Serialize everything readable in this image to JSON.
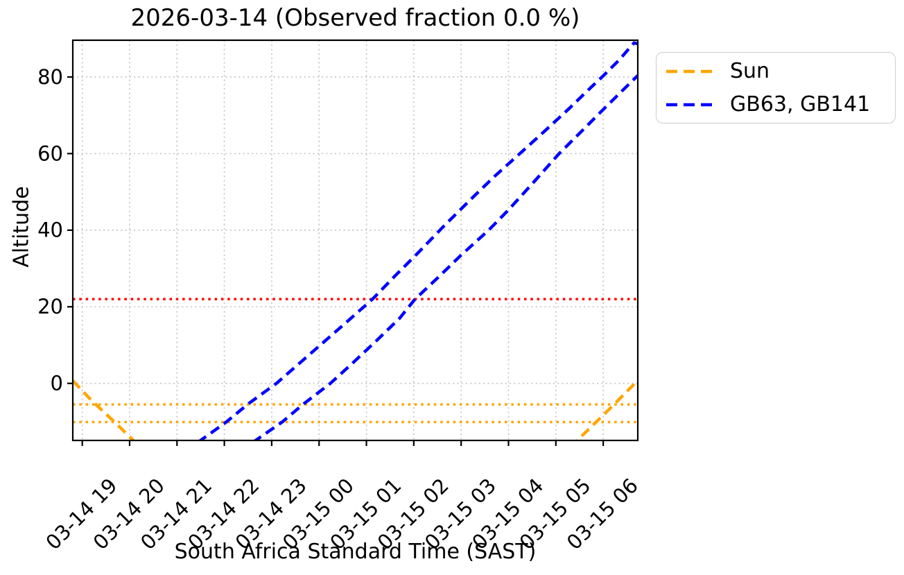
{
  "chart_data": {
    "type": "line",
    "title": "2026-03-14 (Observed fraction 0.0 %)",
    "xlabel": "South Africa Standard Time (SAST)",
    "ylabel": "Altitude",
    "x_axis": {
      "unit": "hours after 2026-03-14 19:00 SAST",
      "xlim": [
        -0.2,
        11.73
      ],
      "tick_positions": [
        0,
        1,
        2,
        3,
        4,
        5,
        6,
        7,
        8,
        9,
        10,
        11
      ],
      "tick_labels": [
        "03-14 19",
        "03-14 20",
        "03-14 21",
        "03-14 22",
        "03-14 23",
        "03-15 00",
        "03-15 01",
        "03-15 02",
        "03-15 03",
        "03-15 04",
        "03-15 05",
        "03-15 06"
      ],
      "tick_rotation_deg": 45
    },
    "y_axis": {
      "ylim": [
        -14.9,
        89.6
      ],
      "tick_positions": [
        0,
        20,
        40,
        60,
        80
      ],
      "tick_labels": [
        "0",
        "20",
        "40",
        "60",
        "80"
      ]
    },
    "grid": {
      "show": true,
      "color": "#c4c4c4",
      "line_style": "dotted"
    },
    "reference_lines": [
      {
        "label": "altitude-limit",
        "y": 22,
        "color": "#ff0000",
        "line_style": "dotted"
      },
      {
        "label": "sun-altitude-marker-upper",
        "y": -5.5,
        "color": "#ffa500",
        "line_style": "dotted"
      },
      {
        "label": "sun-altitude-marker-lower",
        "y": -10.1,
        "color": "#ffa500",
        "line_style": "dotted"
      }
    ],
    "series": [
      {
        "name": "Sun",
        "color": "#ffa500",
        "line_style": "dashed",
        "segments": [
          [
            [
              -0.2,
              0.7
            ],
            [
              0.2,
              -4.5
            ],
            [
              0.7,
              -10.3
            ],
            [
              1.12,
              -15.4
            ]
          ],
          [
            [
              10.3,
              -16.6
            ],
            [
              10.45,
              -14.9
            ],
            [
              10.85,
              -10.1
            ],
            [
              11.23,
              -5.5
            ],
            [
              11.67,
              0.0
            ],
            [
              11.73,
              0.75
            ]
          ]
        ]
      },
      {
        "name": "GB63, GB141",
        "color": "#0000ff",
        "line_style": "dashed",
        "segments": [
          [
            [
              2.44,
              -15.4
            ],
            [
              3.04,
              -10.1
            ],
            [
              3.5,
              -5.4
            ],
            [
              4.1,
              0.0
            ],
            [
              4.6,
              5.4
            ],
            [
              5.1,
              10.8
            ],
            [
              5.6,
              16.2
            ],
            [
              6.12,
              21.9
            ],
            [
              6.6,
              28.0
            ],
            [
              7.1,
              34.2
            ],
            [
              7.63,
              41.0
            ],
            [
              8.2,
              48.0
            ],
            [
              8.7,
              54.0
            ],
            [
              9.24,
              60.0
            ],
            [
              9.8,
              66.3
            ],
            [
              10.3,
              72.0
            ],
            [
              10.7,
              76.8
            ],
            [
              11.0,
              80.3
            ],
            [
              11.35,
              84.6
            ],
            [
              11.55,
              87.5
            ],
            [
              11.65,
              88.9
            ],
            [
              11.73,
              88.7
            ]
          ],
          [
            [
              3.6,
              -15.4
            ],
            [
              4.22,
              -10.1
            ],
            [
              4.66,
              -5.5
            ],
            [
              5.24,
              0.0
            ],
            [
              5.7,
              5.2
            ],
            [
              6.2,
              11.0
            ],
            [
              6.7,
              17.0
            ],
            [
              7.02,
              21.9
            ],
            [
              7.5,
              27.5
            ],
            [
              8.0,
              33.5
            ],
            [
              8.58,
              40.0
            ],
            [
              9.0,
              45.3
            ],
            [
              9.55,
              52.8
            ],
            [
              10.07,
              60.0
            ],
            [
              10.5,
              65.3
            ],
            [
              11.0,
              71.5
            ],
            [
              11.4,
              76.4
            ],
            [
              11.73,
              80.4
            ]
          ]
        ]
      }
    ],
    "legend": {
      "position": "outside upper right",
      "entries": [
        "Sun",
        "GB63, GB141"
      ]
    }
  }
}
